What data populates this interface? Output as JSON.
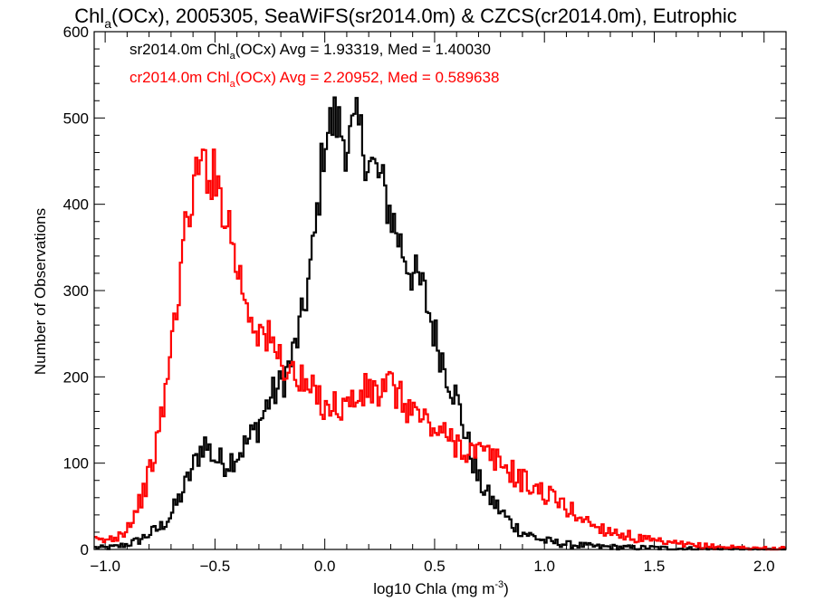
{
  "chart_data": {
    "type": "line",
    "title_parts": {
      "pre": "Chl",
      "sub": "a",
      "post": "(OCx), 2005305, SeaWiFS(sr2014.0m) & CZCS(cr2014.0m), Eutrophic"
    },
    "xlabel_parts": {
      "pre": "log10 Chla (mg m",
      "sup": "-3",
      "post": ")"
    },
    "ylabel": "Number of Observations",
    "xlim": [
      -1.05,
      2.1
    ],
    "ylim": [
      0,
      600
    ],
    "xticks": [
      -1.0,
      -0.5,
      0.0,
      0.5,
      1.0,
      1.5,
      2.0
    ],
    "xtick_labels": [
      "−1.0",
      "−0.5",
      "0.0",
      "0.5",
      "1.0",
      "1.5",
      "2.0"
    ],
    "yticks": [
      0,
      100,
      200,
      300,
      400,
      500,
      600
    ],
    "ytick_labels": [
      "0",
      "100",
      "200",
      "300",
      "400",
      "500",
      "600"
    ],
    "grid": false,
    "legend_position": "top-left",
    "series": [
      {
        "name": "sr2014.0m",
        "color": "#000000",
        "annotation_parts": {
          "pre": "sr2014.0m Chl",
          "sub": "a",
          "post": "(OCx) Avg = 1.93319, Med = 1.40030"
        },
        "x": [
          -1.0,
          -0.95,
          -0.9,
          -0.85,
          -0.8,
          -0.75,
          -0.7,
          -0.65,
          -0.6,
          -0.55,
          -0.5,
          -0.45,
          -0.4,
          -0.35,
          -0.3,
          -0.25,
          -0.2,
          -0.15,
          -0.1,
          -0.05,
          0.0,
          0.05,
          0.1,
          0.15,
          0.2,
          0.25,
          0.3,
          0.35,
          0.4,
          0.45,
          0.5,
          0.55,
          0.6,
          0.65,
          0.7,
          0.75,
          0.8,
          0.85,
          0.9,
          0.95,
          1.0,
          1.05,
          1.1,
          1.15,
          1.2,
          1.25,
          1.3,
          1.4,
          1.5,
          1.6,
          1.7,
          1.8,
          1.9,
          2.0,
          2.1
        ],
        "y": [
          2,
          3,
          6,
          10,
          18,
          25,
          40,
          65,
          95,
          125,
          105,
          100,
          110,
          125,
          145,
          175,
          190,
          220,
          270,
          350,
          480,
          500,
          470,
          490,
          450,
          430,
          390,
          350,
          320,
          300,
          250,
          210,
          175,
          125,
          80,
          60,
          45,
          30,
          20,
          15,
          10,
          8,
          6,
          5,
          4,
          3,
          3,
          2,
          2,
          1,
          1,
          1,
          0,
          0,
          0
        ]
      },
      {
        "name": "cr2014.0m",
        "color": "#ff0000",
        "annotation_parts": {
          "pre": "cr2014.0m Chl",
          "sub": "a",
          "post": "(OCx) Avg = 2.20952, Med = 0.589638"
        },
        "x": [
          -1.0,
          -0.95,
          -0.9,
          -0.85,
          -0.8,
          -0.75,
          -0.7,
          -0.65,
          -0.6,
          -0.55,
          -0.5,
          -0.45,
          -0.4,
          -0.35,
          -0.3,
          -0.25,
          -0.2,
          -0.15,
          -0.1,
          -0.05,
          0.0,
          0.05,
          0.1,
          0.15,
          0.2,
          0.25,
          0.3,
          0.35,
          0.4,
          0.45,
          0.5,
          0.55,
          0.6,
          0.65,
          0.7,
          0.75,
          0.8,
          0.85,
          0.9,
          0.95,
          1.0,
          1.05,
          1.1,
          1.15,
          1.2,
          1.25,
          1.3,
          1.35,
          1.4,
          1.5,
          1.6,
          1.7,
          1.8,
          1.9,
          2.0,
          2.1
        ],
        "y": [
          10,
          15,
          25,
          50,
          85,
          140,
          230,
          340,
          420,
          450,
          430,
          395,
          330,
          280,
          255,
          240,
          220,
          205,
          190,
          180,
          170,
          165,
          168,
          175,
          185,
          180,
          190,
          172,
          162,
          150,
          140,
          130,
          125,
          115,
          112,
          108,
          100,
          90,
          80,
          72,
          65,
          58,
          48,
          40,
          32,
          25,
          22,
          18,
          14,
          9,
          6,
          4,
          3,
          2,
          1,
          1
        ]
      }
    ]
  }
}
